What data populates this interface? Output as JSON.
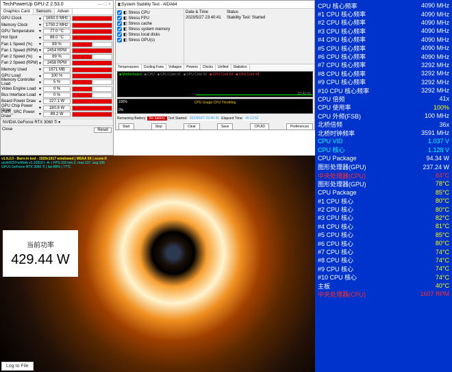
{
  "gpuz": {
    "title": "TechPowerUp GPU-Z 2.53.0",
    "tabs": [
      "Graphics Card",
      "Sensors",
      "Advan"
    ],
    "rows": [
      {
        "label": "GPU Clock",
        "val": "1650.0 MHz",
        "bar": 1
      },
      {
        "label": "Memory Clock",
        "val": "1750.2 MHz",
        "bar": 1
      },
      {
        "label": "GPU Temperature",
        "val": "77.0 °C",
        "bar": 1
      },
      {
        "label": "Hot Spot",
        "val": "88.0 °C",
        "bar": 1
      },
      {
        "label": "Fan 1 Speed (%)",
        "val": "89 %",
        "bar": 0.5
      },
      {
        "label": "Fan 1 Speed (RPM)",
        "val": "2454 RPM",
        "bar": 1
      },
      {
        "label": "Fan 2 Speed (%)",
        "val": "89 %",
        "bar": 0.5
      },
      {
        "label": "Fan 2 Speed (RPM)",
        "val": "2458 RPM",
        "bar": 1
      },
      {
        "label": "Memory Used",
        "val": "1671 MB",
        "bar": 1
      },
      {
        "label": "GPU Load",
        "val": "100 %",
        "bar": 1
      },
      {
        "label": "Memory Controller Load",
        "val": "5 %",
        "bar": 0.5
      },
      {
        "label": "Video Engine Load",
        "val": "0 %",
        "bar": 0.5
      },
      {
        "label": "Bus Interface Load",
        "val": "0 %",
        "bar": 0.5
      },
      {
        "label": "Board Power Draw",
        "val": "227.1 W",
        "bar": 1
      },
      {
        "label": "GPU Chip Power Draw",
        "val": "180.8 W",
        "bar": 1
      },
      {
        "label": "PWR_SRC Power Draw",
        "val": "89.2 W",
        "bar": 1
      }
    ],
    "gpu_name": "NVIDIA GeForce RTX 3060 Ti",
    "reset": "Reset",
    "close": "Close"
  },
  "aida": {
    "title": "System Stability Test - AIDA64",
    "checks": [
      "Stress CPU",
      "Stress FPU",
      "Stress cache",
      "Stress system memory",
      "Stress local disks",
      "Stress GPU(s)"
    ],
    "info_date_lbl": "Date & Time",
    "info_date": "2023/5/27 23:40:41",
    "info_status_lbl": "Status",
    "info_status": "Stability Test: Started",
    "graph_tabs": [
      "Temperatures",
      "Cooling Fans",
      "Voltages",
      "Powers",
      "Clocks",
      "Unified",
      "Statistics"
    ],
    "graph1_legend": [
      "Motherboard",
      "CPU",
      "CPU Core #1",
      "CPU Core #2",
      "CPU Core #3",
      "CPU Core #4"
    ],
    "graph1_time": "23:40:41",
    "graph2_legend": "CPU Usage     CPU Throttling",
    "graph2_pct": "100%",
    "graph2_pct2": "0%",
    "bottom_battery_lbl": "Remaining Battery:",
    "bottom_battery": "No battery",
    "bottom_started_lbl": "Test Started:",
    "bottom_started": "2023/5/27 23:40:41",
    "bottom_elapsed_lbl": "Elapsed Time:",
    "bottom_elapsed": "00:12:52",
    "buttons": [
      "Start",
      "Stop",
      "Clear",
      "Save",
      "CPUID",
      "Preferences"
    ]
  },
  "furmark": {
    "line1": "v1.9.2.0 - Burn-in test - 1920x1017 windowed | MSAA 0X | score:0",
    "line2": "anvk003:FurMark v1.10310 | -A- | FPS:118 min:2, max:137, avg:106",
    "line3": "GPU1 GeForce RTX 3060 Ti | fan:89% | 77°C"
  },
  "power": {
    "label": "当前功率",
    "value": "429.44 W"
  },
  "logtofile": "Log to File",
  "monitor": [
    {
      "l": "CPU 核心频率",
      "v": "4090 MHz"
    },
    {
      "l": "#1 CPU 核心频率",
      "v": "4090 MHz"
    },
    {
      "l": "#2 CPU 核心频率",
      "v": "4090 MHz"
    },
    {
      "l": "#3 CPU 核心频率",
      "v": "4090 MHz"
    },
    {
      "l": "#4 CPU 核心频率",
      "v": "4090 MHz"
    },
    {
      "l": "#5 CPU 核心频率",
      "v": "4090 MHz"
    },
    {
      "l": "#6 CPU 核心频率",
      "v": "4090 MHz"
    },
    {
      "l": "#7 CPU 核心频率",
      "v": "3292 MHz"
    },
    {
      "l": "#8 CPU 核心频率",
      "v": "3292 MHz"
    },
    {
      "l": "#9 CPU 核心频率",
      "v": "3292 MHz"
    },
    {
      "l": "#10 CPU 核心频率",
      "v": "3292 MHz"
    },
    {
      "l": "CPU 倍频",
      "v": "41x"
    },
    {
      "l": "CPU 使用率",
      "v": "100%",
      "c": "yellow"
    },
    {
      "l": "CPU 外频(FSB)",
      "v": "100 MHz"
    },
    {
      "l": "北桥倍频",
      "v": "36x"
    },
    {
      "l": "北桥时钟频率",
      "v": "3591 MHz"
    },
    {
      "l": "CPU VID",
      "v": "1.037 V",
      "c": "cyan"
    },
    {
      "l": "CPU 核心",
      "v": "1.128 V",
      "c": "cyan"
    },
    {
      "l": "CPU Package",
      "v": "94.34 W"
    },
    {
      "l": "图形处理器(GPU)",
      "v": "237.24 W"
    },
    {
      "l": "中央处理器(CPU)",
      "v": "84°C",
      "c": "red"
    },
    {
      "l": "图形处理器(GPU)",
      "v": "78°C",
      "c": "yellow"
    },
    {
      "l": "CPU Package",
      "v": "85°C",
      "c": "yellow"
    },
    {
      "l": "#1 CPU 核心",
      "v": "80°C",
      "c": "yellow"
    },
    {
      "l": "#2 CPU 核心",
      "v": "80°C",
      "c": "yellow"
    },
    {
      "l": "#3 CPU 核心",
      "v": "82°C",
      "c": "yellow"
    },
    {
      "l": "#4 CPU 核心",
      "v": "81°C",
      "c": "yellow"
    },
    {
      "l": "#5 CPU 核心",
      "v": "85°C",
      "c": "yellow"
    },
    {
      "l": "#6 CPU 核心",
      "v": "80°C",
      "c": "yellow"
    },
    {
      "l": "#7 CPU 核心",
      "v": "74°C",
      "c": "yellow"
    },
    {
      "l": "#8 CPU 核心",
      "v": "74°C",
      "c": "yellow"
    },
    {
      "l": "#9 CPU 核心",
      "v": "74°C",
      "c": "yellow"
    },
    {
      "l": "#10 CPU 核心",
      "v": "74°C",
      "c": "yellow"
    },
    {
      "l": "主板",
      "v": "40°C",
      "c": "yellow"
    },
    {
      "l": "中央处理器(CPU)",
      "v": "1607 RPM",
      "c": "red"
    }
  ]
}
